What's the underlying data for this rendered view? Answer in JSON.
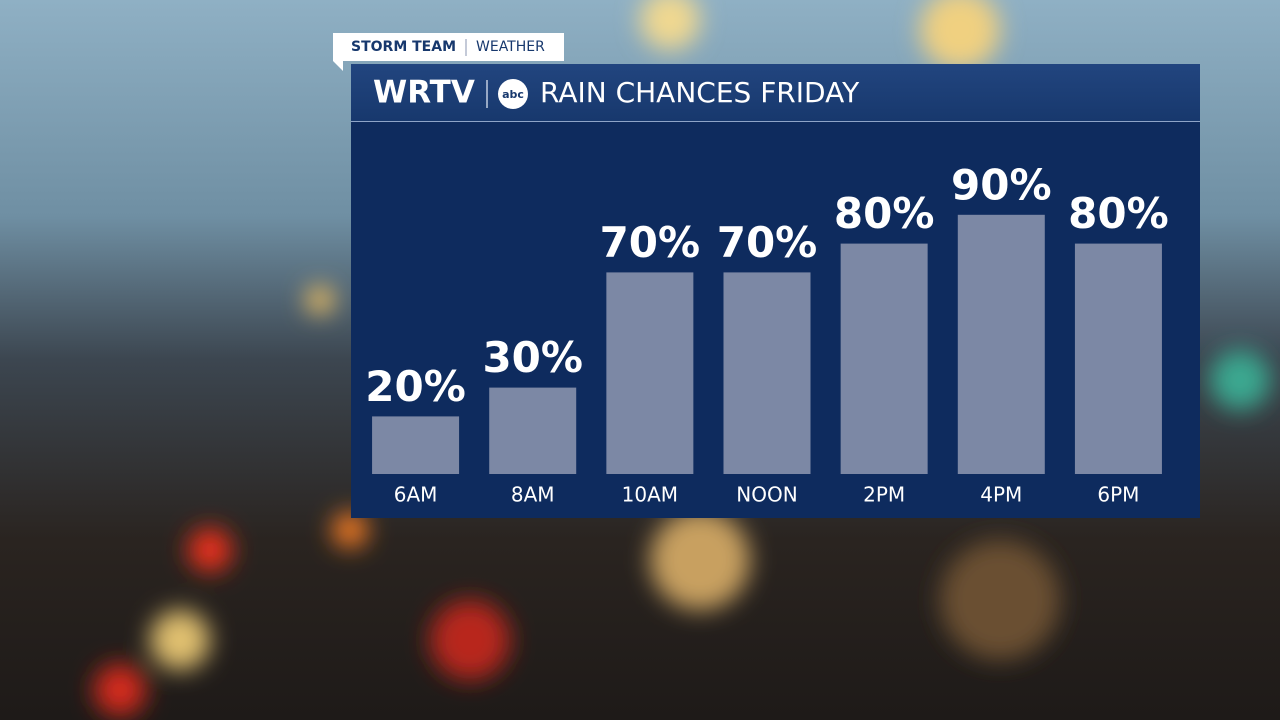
{
  "branding": {
    "tag": "STORM TEAM",
    "tag_section": "WEATHER",
    "station": "WRTV",
    "network": "abc"
  },
  "chart_data": {
    "type": "bar",
    "title": "RAIN CHANCES FRIDAY",
    "categories": [
      "6AM",
      "8AM",
      "10AM",
      "NOON",
      "2PM",
      "4PM",
      "6PM"
    ],
    "values": [
      20,
      30,
      70,
      70,
      80,
      90,
      80
    ],
    "value_labels": [
      "20%",
      "30%",
      "70%",
      "70%",
      "80%",
      "90%",
      "80%"
    ],
    "color": "#7c88a5",
    "ylim": [
      0,
      100
    ]
  }
}
